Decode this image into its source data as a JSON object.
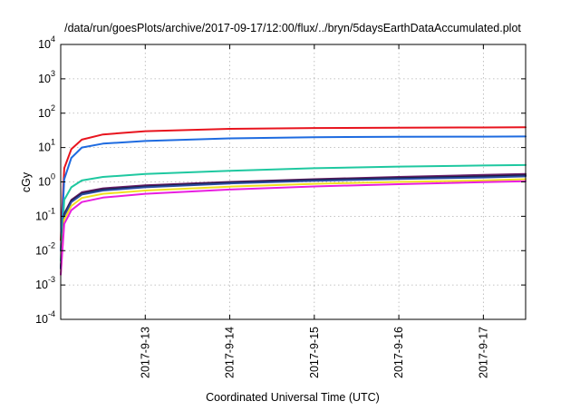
{
  "chart_data": {
    "type": "line",
    "title": "/data/run/goesPlots/archive/2017-09-17/12:00/flux/../bryn/5daysEarthDataAccumulated.plot",
    "xlabel": "Coordinated Universal Time (UTC)",
    "ylabel": "cGy",
    "yscale": "log",
    "ylim": [
      0.0001,
      10000
    ],
    "xlim": [
      "2017-09-12T00:00",
      "2017-09-17T12:00"
    ],
    "grid": true,
    "xticks": [
      {
        "value": "2017-09-13T00:00",
        "label": "2017-9-13"
      },
      {
        "value": "2017-09-14T00:00",
        "label": "2017-9-14"
      },
      {
        "value": "2017-09-15T00:00",
        "label": "2017-9-15"
      },
      {
        "value": "2017-09-16T00:00",
        "label": "2017-9-16"
      },
      {
        "value": "2017-09-17T00:00",
        "label": "2017-9-17"
      }
    ],
    "yticks": [
      {
        "value": 0.0001,
        "base": "10",
        "exp": "-4"
      },
      {
        "value": 0.001,
        "base": "10",
        "exp": "-3"
      },
      {
        "value": 0.01,
        "base": "10",
        "exp": "-2"
      },
      {
        "value": 0.1,
        "base": "10",
        "exp": "-1"
      },
      {
        "value": 1,
        "base": "10",
        "exp": "0"
      },
      {
        "value": 10,
        "base": "10",
        "exp": "1"
      },
      {
        "value": 100,
        "base": "10",
        "exp": "2"
      },
      {
        "value": 1000,
        "base": "10",
        "exp": "3"
      },
      {
        "value": 10000,
        "base": "10",
        "exp": "4"
      }
    ],
    "x": [
      "2017-09-12T00:00",
      "2017-09-12T01:00",
      "2017-09-12T03:00",
      "2017-09-12T06:00",
      "2017-09-12T12:00",
      "2017-09-13T00:00",
      "2017-09-14T00:00",
      "2017-09-15T00:00",
      "2017-09-16T00:00",
      "2017-09-17T00:00",
      "2017-09-17T12:00"
    ],
    "series": [
      {
        "color": "#e8141e",
        "values": [
          0.02,
          2.5,
          9,
          17,
          24,
          30,
          35,
          37,
          38,
          38.5,
          39
        ]
      },
      {
        "color": "#1e6be0",
        "values": [
          0.01,
          1.2,
          5,
          10,
          13,
          15.5,
          18.5,
          20,
          20.5,
          20.8,
          21
        ]
      },
      {
        "color": "#1fc8a0",
        "values": [
          0.005,
          0.3,
          0.7,
          1.1,
          1.4,
          1.7,
          2.1,
          2.5,
          2.8,
          3.0,
          3.1
        ]
      },
      {
        "color": "#6a1f6a",
        "values": [
          0.003,
          0.12,
          0.3,
          0.5,
          0.65,
          0.8,
          1.0,
          1.2,
          1.4,
          1.6,
          1.7
        ]
      },
      {
        "color": "#1a1a40",
        "values": [
          0.003,
          0.11,
          0.28,
          0.46,
          0.6,
          0.74,
          0.95,
          1.15,
          1.3,
          1.45,
          1.55
        ]
      },
      {
        "color": "#2a4aa0",
        "values": [
          0.003,
          0.1,
          0.26,
          0.43,
          0.56,
          0.7,
          0.9,
          1.08,
          1.22,
          1.35,
          1.45
        ]
      },
      {
        "color": "#f0e020",
        "values": [
          0.002,
          0.08,
          0.2,
          0.34,
          0.45,
          0.56,
          0.73,
          0.88,
          1.0,
          1.1,
          1.2
        ]
      },
      {
        "color": "#e81ee0",
        "values": [
          0.002,
          0.06,
          0.15,
          0.26,
          0.35,
          0.45,
          0.6,
          0.74,
          0.86,
          0.98,
          1.05
        ]
      }
    ]
  }
}
